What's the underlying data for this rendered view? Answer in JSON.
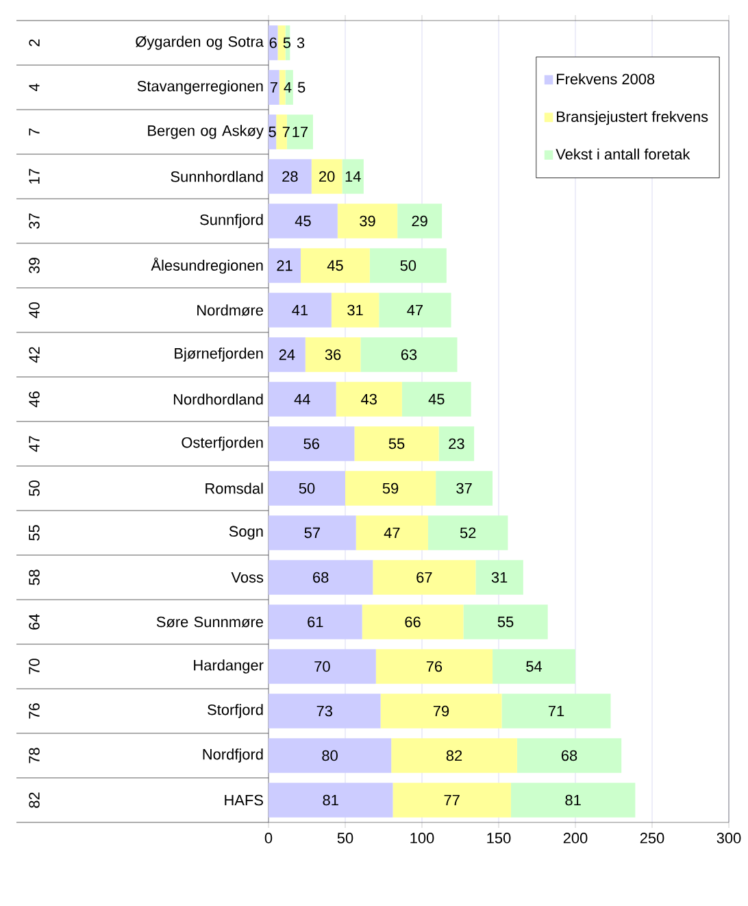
{
  "chart_data": {
    "type": "bar",
    "orientation": "horizontal",
    "stacked": true,
    "categories": [
      "Øygarden og Sotra",
      "Stavangerregionen",
      "Bergen og Askøy",
      "Sunnhordland",
      "Sunnfjord",
      "Ålesundregionen",
      "Nordmøre",
      "Bjørnefjorden",
      "Nordhordland",
      "Osterfjorden",
      "Romsdal",
      "Sogn",
      "Voss",
      "Søre Sunnmøre",
      "Hardanger",
      "Storfjord",
      "Nordfjord",
      "HAFS"
    ],
    "series": [
      {
        "name": "Frekvens 2008",
        "color": "#ccccff",
        "values": [
          6,
          7,
          5,
          28,
          45,
          21,
          41,
          24,
          44,
          56,
          50,
          57,
          68,
          61,
          70,
          73,
          80,
          81
        ]
      },
      {
        "name": "Bransjejustert frekvens",
        "color": "#ffff99",
        "values": [
          5,
          4,
          7,
          20,
          39,
          45,
          31,
          36,
          43,
          55,
          59,
          47,
          67,
          66,
          76,
          79,
          82,
          77
        ]
      },
      {
        "name": "Vekst i antall foretak",
        "color": "#ccffcc",
        "values": [
          3,
          5,
          17,
          14,
          29,
          50,
          47,
          63,
          45,
          23,
          37,
          52,
          31,
          55,
          54,
          71,
          68,
          81
        ]
      }
    ],
    "xlim": [
      0,
      300
    ],
    "xticks": [
      0,
      50,
      100,
      150,
      200,
      250,
      300
    ],
    "grid": "x",
    "legend": "top right",
    "data_labels": true,
    "annotations": [
      "2",
      "4",
      "7",
      "17",
      "37",
      "39",
      "40",
      "42",
      "46",
      "47",
      "50",
      "55",
      "58",
      "64",
      "70",
      "76",
      "78",
      "82"
    ]
  }
}
